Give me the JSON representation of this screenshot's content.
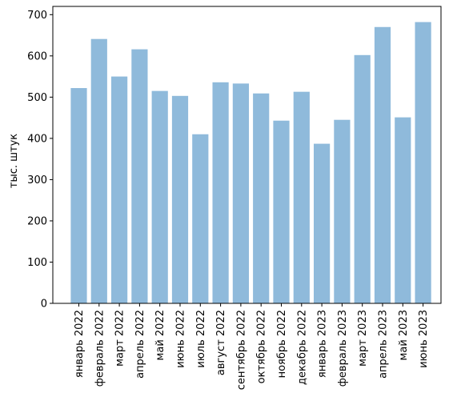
{
  "chart_data": {
    "type": "bar",
    "title": "",
    "xlabel": "",
    "ylabel": "тыс. штук",
    "ylim": [
      0,
      720
    ],
    "yticks": [
      0,
      100,
      200,
      300,
      400,
      500,
      600,
      700
    ],
    "grid": false,
    "bar_color": "#8fbadb",
    "categories": [
      "январь 2022",
      "февраль 2022",
      "март 2022",
      "апрель 2022",
      "май 2022",
      "июнь 2022",
      "июль 2022",
      "август 2022",
      "сентябрь 2022",
      "октябрь 2022",
      "ноябрь 2022",
      "декабрь 2022",
      "январь 2023",
      "февраль 2023",
      "март 2023",
      "апрель 2023",
      "май 2023",
      "июнь 2023"
    ],
    "values": [
      522,
      641,
      550,
      616,
      515,
      503,
      410,
      536,
      533,
      509,
      443,
      513,
      387,
      445,
      602,
      670,
      451,
      682
    ]
  }
}
